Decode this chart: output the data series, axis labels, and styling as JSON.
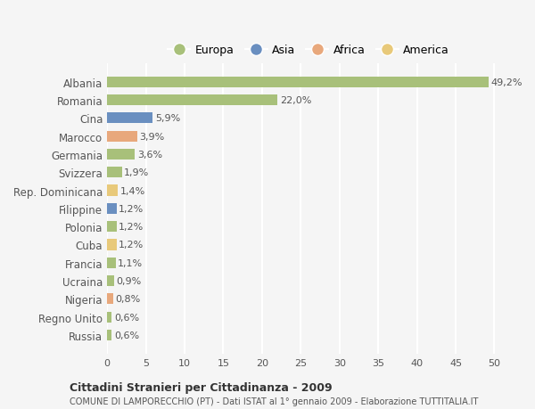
{
  "categories": [
    "Russia",
    "Regno Unito",
    "Nigeria",
    "Ucraina",
    "Francia",
    "Cuba",
    "Polonia",
    "Filippine",
    "Rep. Dominicana",
    "Svizzera",
    "Germania",
    "Marocco",
    "Cina",
    "Romania",
    "Albania"
  ],
  "values": [
    0.6,
    0.6,
    0.8,
    0.9,
    1.1,
    1.2,
    1.2,
    1.2,
    1.4,
    1.9,
    3.6,
    3.9,
    5.9,
    22.0,
    49.2
  ],
  "colors": [
    "#a8c07a",
    "#a8c07a",
    "#e8a87c",
    "#a8c07a",
    "#a8c07a",
    "#e8c97a",
    "#a8c07a",
    "#6a8fc0",
    "#e8c97a",
    "#a8c07a",
    "#a8c07a",
    "#e8a87c",
    "#6a8fc0",
    "#a8c07a",
    "#a8c07a"
  ],
  "labels": [
    "0,6%",
    "0,6%",
    "0,8%",
    "0,9%",
    "1,1%",
    "1,2%",
    "1,2%",
    "1,2%",
    "1,4%",
    "1,9%",
    "3,6%",
    "3,9%",
    "5,9%",
    "22,0%",
    "49,2%"
  ],
  "legend_labels": [
    "Europa",
    "Asia",
    "Africa",
    "America"
  ],
  "legend_colors": [
    "#a8c07a",
    "#6a8fc0",
    "#e8a87c",
    "#e8c97a"
  ],
  "title": "Cittadini Stranieri per Cittadinanza - 2009",
  "subtitle": "COMUNE DI LAMPORECCHIO (PT) - Dati ISTAT al 1° gennaio 2009 - Elaborazione TUTTITALIA.IT",
  "xlim": [
    0,
    52
  ],
  "xticks": [
    0,
    5,
    10,
    15,
    20,
    25,
    30,
    35,
    40,
    45,
    50
  ],
  "background_color": "#f5f5f5",
  "grid_color": "#ffffff",
  "bar_height": 0.6
}
